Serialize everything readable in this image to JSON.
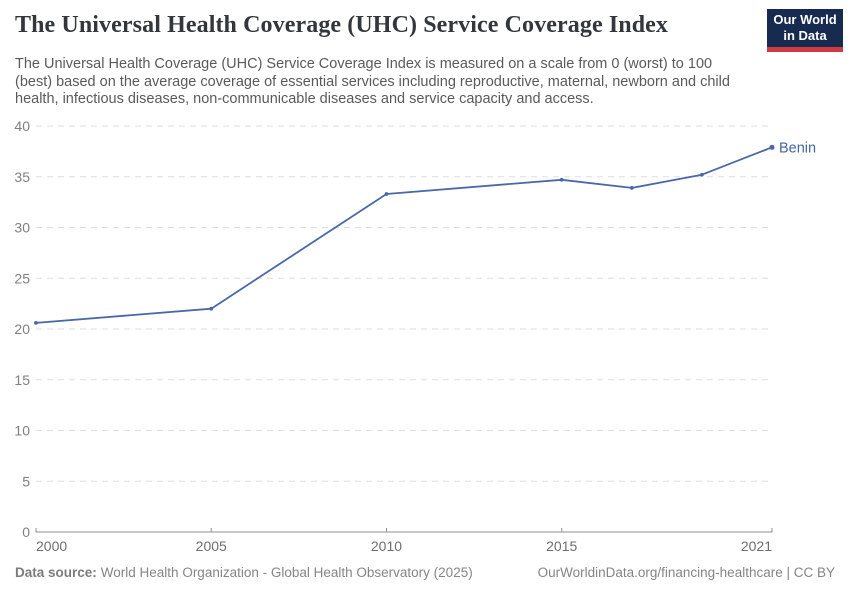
{
  "header": {
    "title": "The Universal Health Coverage (UHC) Service Coverage Index",
    "logo": {
      "line1": "Our World",
      "line2": "in Data"
    }
  },
  "subtitle": "The Universal Health Coverage (UHC) Service Coverage Index is measured on a scale from 0 (worst) to 100 (best) based on the average coverage of essential services including reproductive, maternal, newborn and child health, infectious diseases, non-communicable diseases and service capacity and access.",
  "chart_data": {
    "type": "line",
    "title": "The Universal Health Coverage (UHC) Service Coverage Index",
    "series": [
      {
        "name": "Benin",
        "x": [
          2000,
          2005,
          2010,
          2015,
          2017,
          2019,
          2021
        ],
        "values": [
          20.6,
          22.0,
          33.3,
          34.7,
          33.9,
          35.2,
          37.9
        ]
      }
    ],
    "xlim": [
      2000,
      2021
    ],
    "ylim": [
      0,
      40
    ],
    "x_ticks": [
      2000,
      2005,
      2010,
      2015,
      2021
    ],
    "y_ticks": [
      0,
      5,
      10,
      15,
      20,
      25,
      30,
      35,
      40
    ],
    "grid": "horizontal-dashed",
    "legend": "line-end-label"
  },
  "footer": {
    "source_label": "Data source:",
    "source_text": "World Health Organization - Global Health Observatory (2025)",
    "credit": "OurWorldinData.org/financing-healthcare | CC BY"
  },
  "colors": {
    "line": "#4a68a8",
    "series_label": "#4465a5",
    "grid": "#dddddd",
    "axis": "#8f8f8f",
    "y_tick_label": "#808080",
    "x_tick_label": "#6e6e6e",
    "logo_bg": "#172b51",
    "logo_stripe": "#cf3b44"
  }
}
